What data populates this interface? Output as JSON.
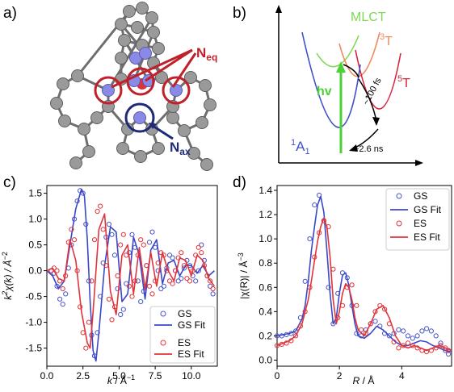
{
  "panels": {
    "a": "a)",
    "b": "b)",
    "c": "c)",
    "d": "d)"
  },
  "molecule": {
    "label_eq": "N",
    "label_eq_sub": "eq",
    "label_ax": "N",
    "label_ax_sub": "ax",
    "colors": {
      "carbon": "#9a9a9a",
      "nitrogen": "#8a8ae6",
      "eq_ring": "#c0202a",
      "ax_ring": "#1e2a78"
    }
  },
  "energy_diagram": {
    "states": [
      "MLCT",
      "3T",
      "5T",
      "1A1"
    ],
    "mlct_label": "MLCT",
    "triplet_label": "T",
    "triplet_sup": "3",
    "quintet_label": "T",
    "quintet_sup": "5",
    "ground_label": "A",
    "ground_sup": "1",
    "ground_sub": "1",
    "excitation_label": "hv",
    "fast_time": "~100 fs",
    "slow_time": "~2.6 ns",
    "colors": {
      "mlct": "#7ed957",
      "triplet": "#f08a60",
      "quintet": "#d7263d",
      "ground": "#4050c8",
      "hv": "#4cd137"
    }
  },
  "chart_data": [
    {
      "panel": "c)",
      "type": "line",
      "xlabel_main": "k",
      "xlabel_unit": " / Å",
      "xlabel_sup": "−1",
      "ylabel_pre": "k",
      "ylabel_sup1": "2",
      "ylabel_mid": "χ(k) / Å",
      "ylabel_sup2": "−2",
      "xlim": [
        0,
        11.8
      ],
      "ylim": [
        -1.85,
        1.65
      ],
      "xticks": [
        "0.0",
        "2.5",
        "5.0",
        "7.5",
        "10.0"
      ],
      "xtick_values": [
        0,
        2.5,
        5,
        7.5,
        10
      ],
      "yticks": [
        "-1.5",
        "-1.0",
        "-0.5",
        "0.0",
        "0.5",
        "1.0",
        "1.5"
      ],
      "ytick_values": [
        -1.5,
        -1.0,
        -0.5,
        0.0,
        0.5,
        1.0,
        1.5
      ],
      "legend_position": "lower-right",
      "series": [
        {
          "name": "GS",
          "style": "markers",
          "color": "#4a55c8",
          "x": [
            0.3,
            0.5,
            0.7,
            0.9,
            1.1,
            1.3,
            1.5,
            1.7,
            1.9,
            2.1,
            2.3,
            2.5,
            2.7,
            2.9,
            3.1,
            3.3,
            3.5,
            3.7,
            3.9,
            4.1,
            4.3,
            4.5,
            4.7,
            4.9,
            5.1,
            5.3,
            5.5,
            5.7,
            5.9,
            6.1,
            6.3,
            6.5,
            6.7,
            6.9,
            7.1,
            7.3,
            7.5,
            7.7,
            7.9,
            8.1,
            8.3,
            8.5,
            8.7,
            8.9,
            9.1,
            9.3,
            9.5,
            9.7,
            9.9,
            10.1,
            10.3,
            10.5,
            10.7,
            10.9,
            11.1,
            11.3,
            11.5
          ],
          "y": [
            0.0,
            -0.05,
            -0.3,
            -0.55,
            -0.65,
            -0.45,
            0.05,
            0.5,
            1.0,
            1.35,
            1.55,
            1.5,
            0.9,
            -0.2,
            -1.25,
            -1.65,
            -1.2,
            -0.5,
            0.15,
            0.65,
            0.9,
            0.7,
            0.3,
            -0.35,
            -0.85,
            -0.75,
            -0.25,
            0.35,
            0.7,
            0.45,
            -0.2,
            -0.6,
            -0.4,
            0.1,
            0.55,
            0.75,
            0.45,
            0.0,
            -0.35,
            -0.3,
            0.05,
            0.3,
            0.25,
            0.0,
            -0.2,
            -0.15,
            0.05,
            0.2,
            0.1,
            -0.1,
            -0.2,
            0.0,
            0.5,
            0.2,
            -0.1,
            -0.3,
            -0.45
          ]
        },
        {
          "name": "GS Fit",
          "style": "line",
          "color": "#3a48c8",
          "x": [
            0.0,
            0.4,
            0.8,
            1.2,
            1.6,
            2.0,
            2.4,
            2.6,
            2.8,
            3.0,
            3.2,
            3.4,
            3.6,
            4.0,
            4.4,
            4.8,
            5.2,
            5.6,
            6.0,
            6.4,
            6.8,
            7.2,
            7.6,
            8.0,
            8.4,
            8.8,
            9.2,
            9.6,
            10.0,
            10.4,
            10.8,
            11.2,
            11.6
          ],
          "y": [
            0.0,
            -0.1,
            -0.35,
            -0.2,
            0.5,
            1.2,
            1.58,
            1.45,
            0.6,
            -0.6,
            -1.55,
            -1.75,
            -1.2,
            0.1,
            0.85,
            0.75,
            -0.6,
            -0.45,
            0.65,
            0.3,
            -0.55,
            0.4,
            0.6,
            -0.25,
            0.15,
            0.2,
            -0.1,
            0.1,
            0.1,
            -0.05,
            0.1,
            -0.1,
            0.0
          ]
        },
        {
          "name": "ES",
          "style": "markers",
          "color": "#e0343a",
          "x": [
            0.3,
            0.5,
            0.7,
            0.9,
            1.1,
            1.3,
            1.5,
            1.7,
            1.9,
            2.1,
            2.3,
            2.5,
            2.7,
            2.9,
            3.1,
            3.3,
            3.5,
            3.7,
            3.9,
            4.1,
            4.3,
            4.5,
            4.7,
            4.9,
            5.1,
            5.3,
            5.5,
            5.7,
            5.9,
            6.1,
            6.3,
            6.5,
            6.7,
            6.9,
            7.1,
            7.3,
            7.5,
            7.7,
            7.9,
            8.1,
            8.3,
            8.5,
            8.7,
            8.9,
            9.1,
            9.3,
            9.5,
            9.7,
            9.9,
            10.1,
            10.3,
            10.5,
            10.7,
            10.9,
            11.1,
            11.3,
            11.5
          ],
          "y": [
            0.0,
            0.05,
            0.0,
            -0.2,
            -0.35,
            -0.1,
            0.55,
            0.8,
            0.6,
            0.0,
            -0.7,
            -1.2,
            -1.5,
            -1.0,
            -0.2,
            0.6,
            1.15,
            1.25,
            0.8,
            0.1,
            -0.55,
            -0.95,
            -0.7,
            -0.1,
            0.5,
            0.7,
            0.3,
            -0.3,
            -0.5,
            -0.2,
            0.3,
            0.6,
            0.5,
            0.1,
            -0.3,
            -0.45,
            -0.2,
            0.15,
            0.35,
            0.3,
            0.0,
            -0.2,
            -0.25,
            0.0,
            0.25,
            0.35,
            0.1,
            -0.15,
            -0.2,
            0.0,
            0.3,
            0.45,
            0.35,
            0.1,
            -0.1,
            -0.2,
            -0.35
          ]
        },
        {
          "name": "ES Fit",
          "style": "line",
          "color": "#e0343a",
          "x": [
            0.0,
            0.4,
            0.8,
            1.2,
            1.6,
            2.0,
            2.4,
            2.8,
            3.0,
            3.2,
            3.6,
            4.0,
            4.4,
            4.8,
            5.2,
            5.6,
            6.0,
            6.4,
            6.8,
            7.2,
            7.6,
            8.0,
            8.4,
            8.8,
            9.2,
            9.6,
            10.0,
            10.4,
            10.8,
            11.2,
            11.6
          ],
          "y": [
            0.0,
            0.05,
            -0.15,
            -0.2,
            0.6,
            0.2,
            -0.8,
            -1.4,
            -1.5,
            -0.8,
            0.8,
            1.1,
            -0.4,
            -0.85,
            0.3,
            0.5,
            -0.45,
            0.45,
            -0.35,
            0.35,
            -0.3,
            0.35,
            0.0,
            -0.2,
            0.25,
            0.2,
            -0.1,
            0.3,
            0.2,
            -0.15,
            -0.3
          ]
        }
      ]
    },
    {
      "panel": "d)",
      "type": "line",
      "xlabel_main": "R",
      "xlabel_unit": " / Å",
      "ylabel_text": "|χ(R)| / Å",
      "ylabel_sup": "−3",
      "xlim": [
        0,
        5.6
      ],
      "ylim": [
        -0.05,
        1.44
      ],
      "xticks": [
        "0",
        "2",
        "4"
      ],
      "xtick_values": [
        0,
        2,
        4
      ],
      "yticks": [
        "0.0",
        "0.2",
        "0.4",
        "0.6",
        "0.8",
        "1.0",
        "1.2",
        "1.4"
      ],
      "ytick_values": [
        0.0,
        0.2,
        0.4,
        0.6,
        0.8,
        1.0,
        1.2,
        1.4
      ],
      "legend_position": "upper-right",
      "series": [
        {
          "name": "GS",
          "style": "markers",
          "color": "#4a55c8",
          "x": [
            0.0,
            0.15,
            0.3,
            0.45,
            0.6,
            0.75,
            0.9,
            1.05,
            1.2,
            1.35,
            1.5,
            1.65,
            1.8,
            1.95,
            2.1,
            2.25,
            2.4,
            2.55,
            2.7,
            2.85,
            3.0,
            3.15,
            3.3,
            3.45,
            3.6,
            3.75,
            3.9,
            4.05,
            4.2,
            4.35,
            4.5,
            4.65,
            4.8,
            4.95,
            5.1,
            5.25,
            5.4,
            5.5
          ],
          "y": [
            0.2,
            0.2,
            0.21,
            0.22,
            0.24,
            0.35,
            0.65,
            1.0,
            1.28,
            1.36,
            1.15,
            0.6,
            0.3,
            0.55,
            0.72,
            0.68,
            0.45,
            0.22,
            0.2,
            0.25,
            0.3,
            0.32,
            0.28,
            0.22,
            0.2,
            0.22,
            0.25,
            0.24,
            0.2,
            0.18,
            0.2,
            0.24,
            0.26,
            0.24,
            0.2,
            0.14,
            0.08,
            0.05
          ]
        },
        {
          "name": "GS Fit",
          "style": "line",
          "color": "#3a48c8",
          "x": [
            0.0,
            0.2,
            0.4,
            0.6,
            0.8,
            0.9,
            1.0,
            1.1,
            1.2,
            1.3,
            1.4,
            1.5,
            1.6,
            1.7,
            1.8,
            1.9,
            2.0,
            2.1,
            2.2,
            2.3,
            2.4,
            2.5,
            2.6,
            2.8,
            3.0,
            3.2,
            3.4,
            3.6,
            3.8,
            4.0,
            4.2,
            4.4,
            4.6,
            4.8,
            5.0,
            5.2,
            5.4,
            5.6
          ],
          "y": [
            0.2,
            0.21,
            0.22,
            0.24,
            0.34,
            0.45,
            0.65,
            0.9,
            1.1,
            1.28,
            1.35,
            1.22,
            0.9,
            0.55,
            0.3,
            0.35,
            0.55,
            0.7,
            0.72,
            0.62,
            0.45,
            0.3,
            0.2,
            0.18,
            0.22,
            0.28,
            0.25,
            0.2,
            0.15,
            0.12,
            0.12,
            0.14,
            0.16,
            0.15,
            0.12,
            0.1,
            0.08,
            0.07
          ]
        },
        {
          "name": "ES",
          "style": "markers",
          "color": "#e0343a",
          "x": [
            0.0,
            0.15,
            0.3,
            0.45,
            0.6,
            0.75,
            0.9,
            1.05,
            1.2,
            1.35,
            1.5,
            1.65,
            1.8,
            1.95,
            2.1,
            2.25,
            2.4,
            2.55,
            2.7,
            2.85,
            3.0,
            3.15,
            3.3,
            3.45,
            3.6,
            3.75,
            3.9,
            4.05,
            4.2,
            4.35,
            4.5,
            4.65,
            4.8,
            4.95,
            5.1,
            5.25,
            5.4,
            5.5
          ],
          "y": [
            0.12,
            0.13,
            0.14,
            0.16,
            0.2,
            0.28,
            0.4,
            0.6,
            0.85,
            1.05,
            1.15,
            1.1,
            0.75,
            0.35,
            0.45,
            0.6,
            0.62,
            0.45,
            0.25,
            0.22,
            0.3,
            0.4,
            0.45,
            0.42,
            0.3,
            0.15,
            0.1,
            0.12,
            0.14,
            0.12,
            0.1,
            0.08,
            0.07,
            0.08,
            0.1,
            0.12,
            0.1,
            0.08
          ]
        },
        {
          "name": "ES Fit",
          "style": "line",
          "color": "#e0343a",
          "x": [
            0.0,
            0.2,
            0.4,
            0.6,
            0.8,
            1.0,
            1.1,
            1.2,
            1.3,
            1.4,
            1.5,
            1.6,
            1.7,
            1.8,
            1.9,
            2.0,
            2.1,
            2.2,
            2.3,
            2.4,
            2.5,
            2.6,
            2.8,
            3.0,
            3.2,
            3.4,
            3.6,
            3.8,
            4.0,
            4.2,
            4.4,
            4.6,
            4.8,
            5.0,
            5.2,
            5.4,
            5.6
          ],
          "y": [
            0.12,
            0.14,
            0.16,
            0.2,
            0.3,
            0.5,
            0.65,
            0.82,
            0.98,
            1.1,
            1.17,
            1.1,
            0.85,
            0.5,
            0.3,
            0.4,
            0.55,
            0.63,
            0.6,
            0.5,
            0.35,
            0.25,
            0.2,
            0.3,
            0.42,
            0.45,
            0.35,
            0.2,
            0.12,
            0.1,
            0.12,
            0.1,
            0.08,
            0.1,
            0.12,
            0.1,
            0.08
          ]
        }
      ]
    }
  ]
}
